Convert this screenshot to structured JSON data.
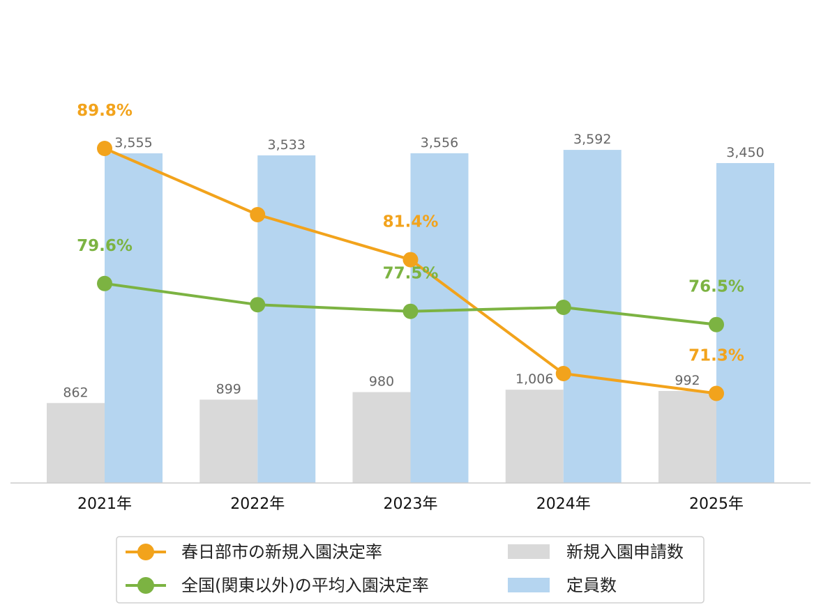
{
  "chart_data": {
    "type": "bar",
    "categories": [
      "2021年",
      "2022年",
      "2023年",
      "2024年",
      "2025年"
    ],
    "bar_series": [
      {
        "name": "新規入園申請数",
        "values": [
          862,
          899,
          980,
          1006,
          992
        ],
        "labels": [
          "862",
          "899",
          "980",
          "1,006",
          "992"
        ],
        "color": "#d9d9d9"
      },
      {
        "name": "定員数",
        "values": [
          3555,
          3533,
          3556,
          3592,
          3450
        ],
        "labels": [
          "3,555",
          "3,533",
          "3,556",
          "3,592",
          "3,450"
        ],
        "color": "#b5d5f0"
      }
    ],
    "line_series": [
      {
        "name": "春日部市の新規入園決定率",
        "values": [
          89.8,
          84.8,
          81.4,
          72.8,
          71.3
        ],
        "labels": [
          "89.8%",
          "",
          "81.4%",
          "",
          "71.3%"
        ],
        "color": "#f2a31c"
      },
      {
        "name": "全国(関東以外)の平均入園決定率",
        "values": [
          79.6,
          78.0,
          77.5,
          77.8,
          76.5
        ],
        "labels": [
          "79.6%",
          "",
          "77.5%",
          "",
          "76.5%"
        ],
        "color": "#7cb342"
      }
    ],
    "bar_ylim": [
      0,
      4000
    ],
    "line_ylim": [
      60,
      93
    ],
    "grid": false,
    "legend_position": "bottom"
  }
}
